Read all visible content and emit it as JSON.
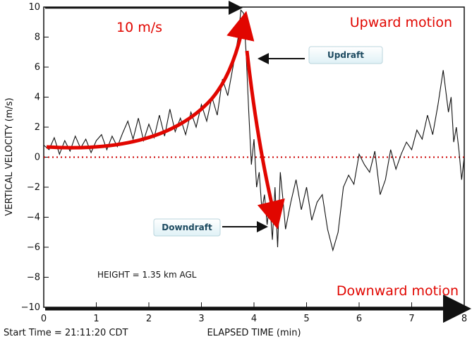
{
  "chart_data": {
    "type": "line",
    "xlabel": "ELAPSED TIME (min)",
    "ylabel": "VERTICAL VELOCITY (m/s)",
    "xlim": [
      0,
      8
    ],
    "ylim": [
      -10,
      10
    ],
    "x_ticks": [
      0,
      1,
      2,
      3,
      4,
      5,
      6,
      7,
      8
    ],
    "y_ticks": [
      10,
      8,
      6,
      4,
      2,
      0,
      -2,
      -4,
      -6,
      -8,
      -10
    ],
    "start_time_label": "Start Time = 21:11:20 CDT",
    "height_note": "HEIGHT = 1.35 km AGL",
    "zero_line": {
      "y": 0,
      "color": "#cc0000",
      "style": "dotted"
    },
    "series": [
      {
        "color": "#111111",
        "x": [
          0.0,
          0.1,
          0.2,
          0.3,
          0.4,
          0.5,
          0.6,
          0.7,
          0.8,
          0.9,
          1.0,
          1.1,
          1.2,
          1.3,
          1.4,
          1.5,
          1.6,
          1.7,
          1.8,
          1.9,
          2.0,
          2.1,
          2.2,
          2.3,
          2.4,
          2.5,
          2.6,
          2.7,
          2.8,
          2.9,
          3.0,
          3.1,
          3.2,
          3.3,
          3.4,
          3.5,
          3.6,
          3.65,
          3.7,
          3.75,
          3.8,
          3.85,
          3.9,
          3.95,
          4.0,
          4.05,
          4.1,
          4.15,
          4.2,
          4.25,
          4.3,
          4.35,
          4.4,
          4.45,
          4.5,
          4.55,
          4.6,
          4.7,
          4.8,
          4.9,
          5.0,
          5.1,
          5.2,
          5.3,
          5.4,
          5.5,
          5.6,
          5.7,
          5.8,
          5.9,
          6.0,
          6.1,
          6.2,
          6.3,
          6.4,
          6.5,
          6.6,
          6.7,
          6.8,
          6.9,
          7.0,
          7.1,
          7.2,
          7.3,
          7.4,
          7.5,
          7.6,
          7.7,
          7.75,
          7.8,
          7.85,
          7.9,
          7.95,
          8.0
        ],
        "values": [
          0.8,
          0.5,
          1.3,
          0.2,
          1.1,
          0.4,
          1.4,
          0.6,
          1.2,
          0.3,
          1.1,
          1.5,
          0.5,
          1.4,
          0.7,
          1.6,
          2.4,
          1.2,
          2.6,
          1.1,
          2.2,
          1.3,
          2.8,
          1.4,
          3.2,
          1.7,
          2.6,
          1.5,
          3.0,
          2.0,
          3.5,
          2.4,
          4.0,
          2.8,
          5.2,
          4.1,
          6.0,
          7.0,
          8.0,
          9.8,
          9.6,
          7.0,
          3.0,
          -0.5,
          1.2,
          -2.0,
          -1.0,
          -3.5,
          -2.5,
          -4.5,
          -3.0,
          -5.5,
          -2.0,
          -6.0,
          -1.0,
          -2.8,
          -4.8,
          -3.0,
          -1.5,
          -3.5,
          -2.0,
          -4.2,
          -3.0,
          -2.5,
          -4.8,
          -6.2,
          -5.0,
          -2.0,
          -1.2,
          -1.8,
          0.2,
          -0.5,
          -1.0,
          0.4,
          -2.5,
          -1.5,
          0.5,
          -0.8,
          0.2,
          1.0,
          0.5,
          1.8,
          1.2,
          2.8,
          1.5,
          3.5,
          5.8,
          3.0,
          4.0,
          1.0,
          2.0,
          0.4,
          -1.5,
          0.0
        ]
      }
    ],
    "annotations": {
      "peak_label": "10 m/s",
      "upward_label": "Upward motion",
      "downward_label": "Downward motion",
      "updraft_label": "Updraft",
      "downdraft_label": "Downdraft",
      "accent_color": "#e10600"
    }
  }
}
